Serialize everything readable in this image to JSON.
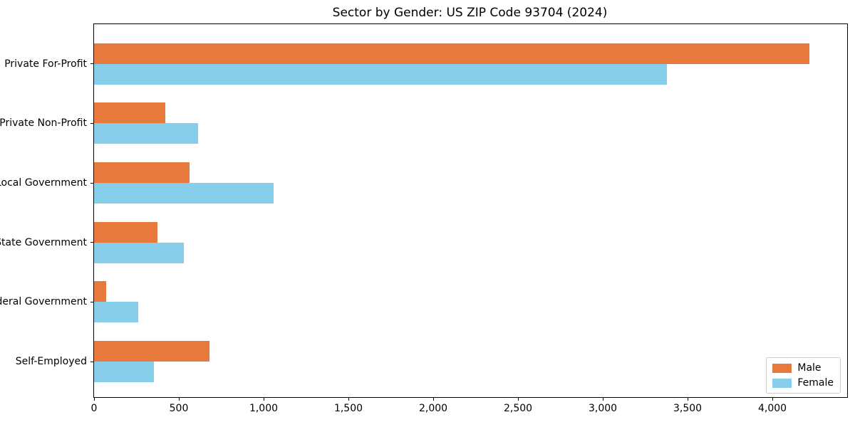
{
  "title": "Sector by Gender: US ZIP Code 93704 (2024)",
  "chart_data": {
    "type": "bar",
    "orientation": "horizontal",
    "title": "Sector by Gender: US ZIP Code 93704 (2024)",
    "xlabel": "",
    "ylabel": "",
    "grid": false,
    "categories": [
      "Private For-Profit",
      "Private Non-Profit",
      "Local Government",
      "State Government",
      "Federal Government",
      "Self-Employed"
    ],
    "series": [
      {
        "name": "Male",
        "color": "#e8793c",
        "values": [
          4220,
          420,
          565,
          375,
          70,
          680
        ]
      },
      {
        "name": "Female",
        "color": "#87ceeb",
        "values": [
          3380,
          615,
          1060,
          530,
          260,
          355
        ]
      }
    ],
    "xlim": [
      0,
      4441
    ],
    "xticks": [
      {
        "value": 0,
        "label": "0"
      },
      {
        "value": 500,
        "label": "500"
      },
      {
        "value": 1000,
        "label": "1,000"
      },
      {
        "value": 1500,
        "label": "1,500"
      },
      {
        "value": 2000,
        "label": "2,000"
      },
      {
        "value": 2500,
        "label": "2,500"
      },
      {
        "value": 3000,
        "label": "3,000"
      },
      {
        "value": 3500,
        "label": "3,500"
      },
      {
        "value": 4000,
        "label": "4,000"
      }
    ],
    "legend": {
      "position": "lower right",
      "entries": [
        "Male",
        "Female"
      ]
    }
  }
}
